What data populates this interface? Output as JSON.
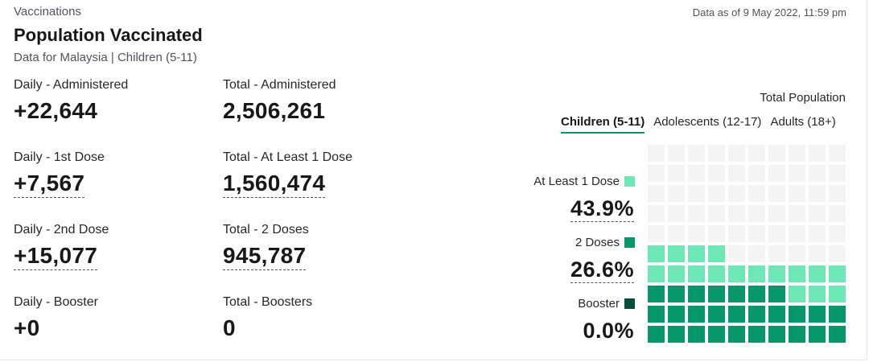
{
  "header": {
    "section": "Vaccinations",
    "as_of": "Data as of 9 May 2022, 11:59 pm",
    "title": "Population Vaccinated",
    "subtitle": "Data for Malaysia | Children (5-11)"
  },
  "stats": {
    "daily_administered": {
      "label": "Daily - Administered",
      "value": "+22,644"
    },
    "total_administered": {
      "label": "Total - Administered",
      "value": "2,506,261"
    },
    "daily_first": {
      "label": "Daily - 1st Dose",
      "value": "+7,567"
    },
    "total_first": {
      "label": "Total - At Least 1 Dose",
      "value": "1,560,474"
    },
    "daily_second": {
      "label": "Daily - 2nd Dose",
      "value": "+15,077"
    },
    "total_second": {
      "label": "Total - 2 Doses",
      "value": "945,787"
    },
    "daily_booster": {
      "label": "Daily - Booster",
      "value": "+0"
    },
    "total_booster": {
      "label": "Total - Boosters",
      "value": "0"
    }
  },
  "panel": {
    "total_population": "Total Population",
    "tabs": [
      "Children (5-11)",
      "Adolescents (12-17)",
      "Adults (18+)"
    ],
    "active_tab": 0,
    "legend": {
      "at_least_1": {
        "label": "At Least 1 Dose",
        "pct": "43.9%",
        "fraction": 0.439,
        "color": "#6ee7b7"
      },
      "two_doses": {
        "label": "2 Doses",
        "pct": "26.6%",
        "fraction": 0.266,
        "color": "#059669"
      },
      "booster": {
        "label": "Booster",
        "pct": "0.0%",
        "fraction": 0.0,
        "color": "#064e3b"
      }
    },
    "waffle_empty_color": "#f4f4f5"
  }
}
